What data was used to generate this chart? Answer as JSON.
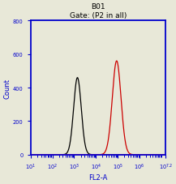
{
  "title_line1": "B01",
  "title_line2": "Gate: (P2 in all)",
  "xlabel": "FL2-A",
  "ylabel": "Count",
  "xlim_log": [
    1,
    7.2
  ],
  "ylim": [
    0,
    800
  ],
  "yticks": [
    0,
    200,
    400,
    600,
    800
  ],
  "black_peak_log": 3.15,
  "black_peak_height": 460,
  "black_sigma_log": 0.175,
  "red_peak_log": 4.95,
  "red_peak_height": 560,
  "red_sigma_log": 0.2,
  "bg_color": "#e8e8d8",
  "plot_bg_color": "#e8e8d8",
  "border_color": "#0000cc",
  "tick_color": "#0000cc",
  "label_color": "#0000cc",
  "title_color": "#000000",
  "black_curve_color": "#000000",
  "red_curve_color": "#cc0000",
  "baseline_color": "#aa00aa",
  "title_fontsize": 6.5,
  "axis_label_fontsize": 6.0,
  "tick_label_fontsize": 4.8
}
